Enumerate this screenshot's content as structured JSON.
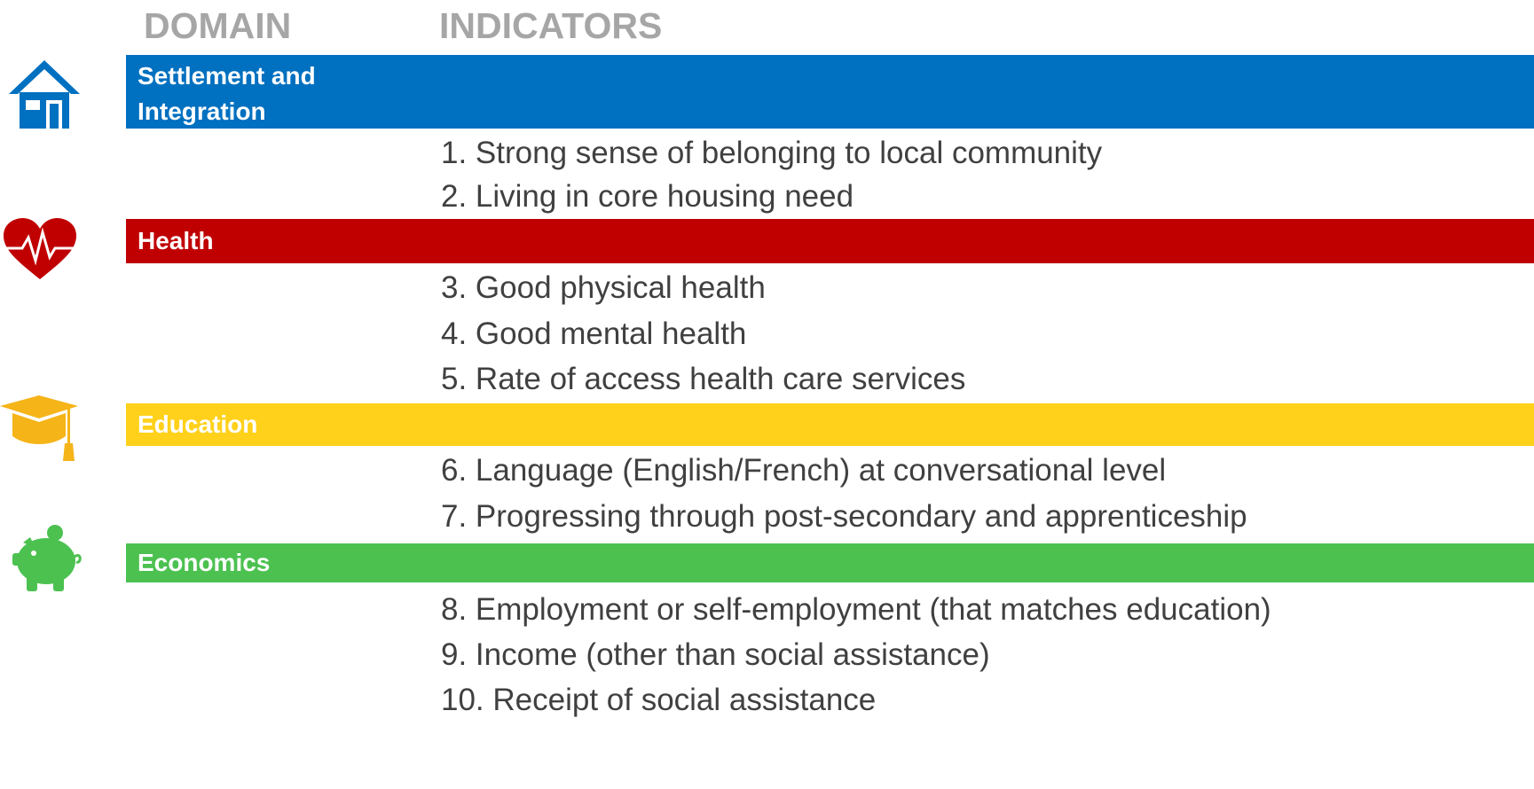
{
  "header": {
    "domain": "DOMAIN",
    "indicators": "INDICATORS"
  },
  "domains": [
    {
      "name": "Settlement and Integration",
      "color": "#0070c0",
      "indicators": [
        "1. Strong sense of belonging to local community",
        "2. Living in core housing need"
      ]
    },
    {
      "name": "Health",
      "color": "#c00000",
      "indicators": [
        "3. Good physical health",
        "4. Good mental health",
        "5. Rate of access health care services"
      ]
    },
    {
      "name": "Education",
      "color": "#ffd11a",
      "indicators": [
        "6. Language (English/French) at conversational level",
        "7. Progressing through post-secondary and apprenticeship"
      ]
    },
    {
      "name": "Economics",
      "color": "#4cc150",
      "indicators": [
        "8. Employment or self-employment (that matches education)",
        "9. Income (other than social assistance)",
        "10. Receipt of social assistance"
      ]
    }
  ]
}
